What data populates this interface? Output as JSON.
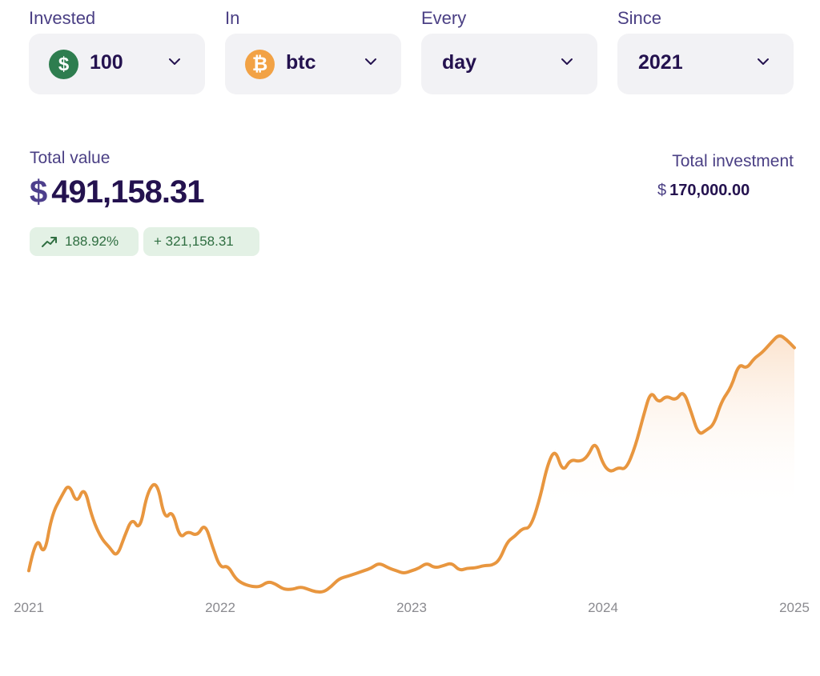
{
  "controls": {
    "invested": {
      "label": "Invested",
      "value": "100",
      "icon": "dollar-icon",
      "icon_glyph": "$",
      "icon_color": "#2e7d4f"
    },
    "in": {
      "label": "In",
      "value": "btc",
      "icon": "bitcoin-icon",
      "icon_glyph": "₿",
      "icon_color": "#f2a245"
    },
    "every": {
      "label": "Every",
      "value": "day"
    },
    "since": {
      "label": "Since",
      "value": "2021"
    }
  },
  "summary": {
    "total_value_label": "Total value",
    "currency_symbol": "$",
    "total_value": "491,158.31",
    "pct_change": "188.92%",
    "abs_change": "+ 321,158.31",
    "total_investment_label": "Total investment",
    "total_investment_currency": "$",
    "total_investment": "170,000.00"
  },
  "colors": {
    "line": "#e8963f",
    "area_top": "#fbe2cc",
    "positive": "#2f6e41",
    "positive_bg": "#e3f1e5"
  },
  "chart_data": {
    "type": "area",
    "xlabel": "",
    "ylabel": "",
    "x_ticks": [
      "2021",
      "2022",
      "2023",
      "2024",
      "2025"
    ],
    "xlim": [
      2021,
      2025
    ],
    "ylim": [
      0,
      100
    ],
    "x": [
      2021.0,
      2021.04,
      2021.08,
      2021.12,
      2021.17,
      2021.21,
      2021.25,
      2021.29,
      2021.33,
      2021.38,
      2021.42,
      2021.46,
      2021.5,
      2021.54,
      2021.58,
      2021.62,
      2021.67,
      2021.71,
      2021.75,
      2021.79,
      2021.83,
      2021.88,
      2021.92,
      2021.96,
      2022.0,
      2022.04,
      2022.08,
      2022.12,
      2022.17,
      2022.21,
      2022.25,
      2022.29,
      2022.33,
      2022.38,
      2022.42,
      2022.46,
      2022.5,
      2022.54,
      2022.58,
      2022.62,
      2022.67,
      2022.71,
      2022.75,
      2022.79,
      2022.83,
      2022.88,
      2022.92,
      2022.96,
      2023.0,
      2023.04,
      2023.08,
      2023.12,
      2023.17,
      2023.21,
      2023.25,
      2023.29,
      2023.33,
      2023.38,
      2023.42,
      2023.46,
      2023.5,
      2023.54,
      2023.58,
      2023.62,
      2023.67,
      2023.71,
      2023.75,
      2023.79,
      2023.83,
      2023.88,
      2023.92,
      2023.96,
      2024.0,
      2024.04,
      2024.08,
      2024.12,
      2024.17,
      2024.21,
      2024.25,
      2024.29,
      2024.33,
      2024.38,
      2024.42,
      2024.46,
      2024.5,
      2024.54,
      2024.58,
      2024.62,
      2024.67,
      2024.71,
      2024.75,
      2024.79,
      2024.83,
      2024.88,
      2024.92,
      2024.96,
      2025.0
    ],
    "values": [
      8,
      22,
      13,
      29,
      36,
      41,
      33,
      40,
      28,
      20,
      17,
      13,
      21,
      28,
      23,
      38,
      42,
      27,
      31,
      20,
      23,
      21,
      26,
      17,
      9,
      10,
      5,
      3,
      2,
      2,
      4,
      3,
      1,
      1,
      2,
      1,
      0,
      0,
      2,
      5,
      6,
      7,
      8,
      9,
      11,
      9,
      8,
      7,
      8,
      9,
      11,
      9,
      10,
      11,
      8,
      9,
      9,
      10,
      10,
      12,
      19,
      21,
      24,
      24,
      35,
      48,
      54,
      45,
      50,
      49,
      51,
      57,
      48,
      45,
      47,
      46,
      55,
      66,
      76,
      71,
      74,
      72,
      76,
      68,
      59,
      61,
      63,
      72,
      77,
      86,
      84,
      88,
      90,
      94,
      97,
      95,
      92
    ]
  }
}
